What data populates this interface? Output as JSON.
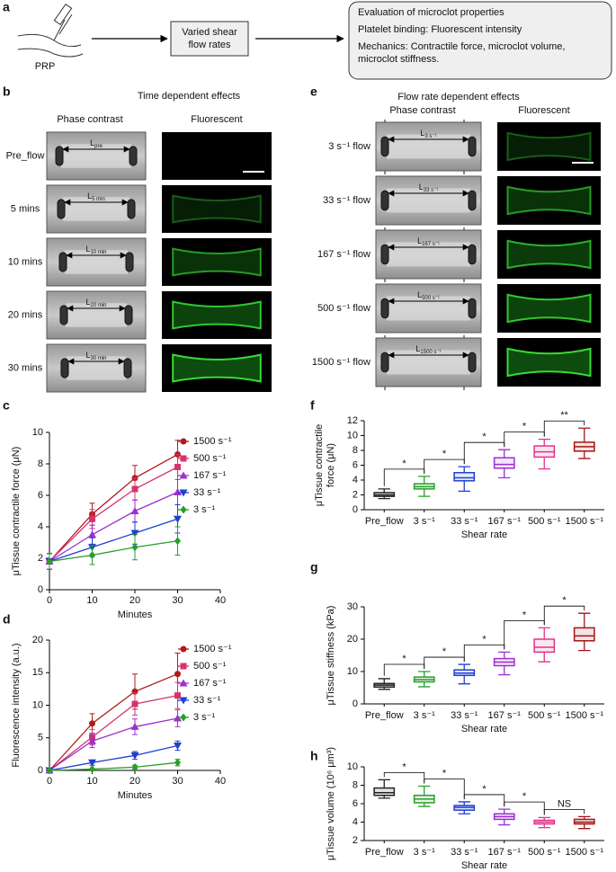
{
  "panel_labels": [
    "a",
    "b",
    "c",
    "d",
    "e",
    "f",
    "g",
    "h"
  ],
  "schematic": {
    "source": "PRP",
    "step": [
      "Varied shear",
      "flow rates"
    ],
    "evaluation": [
      "Evaluation of microclot properties",
      "Platelet binding: Fluorescent intensity",
      "Mechanics: Contractile force, microclot volume,",
      "microclot stiffness."
    ]
  },
  "time_panel": {
    "title": "Time dependent effects",
    "columns": [
      "Phase contrast",
      "Fluorescent"
    ],
    "rows": [
      {
        "label": "Pre_flow",
        "length": "L",
        "length_sub": "pre"
      },
      {
        "label": "5 mins",
        "length": "L",
        "length_sub": "5 min"
      },
      {
        "label": "10 mins",
        "length": "L",
        "length_sub": "10 min"
      },
      {
        "label": "20 mins",
        "length": "L",
        "length_sub": "20 min"
      },
      {
        "label": "30 mins",
        "length": "L",
        "length_sub": "30 min"
      }
    ]
  },
  "flow_panel": {
    "title": "Flow rate dependent effects",
    "columns": [
      "Phase contrast",
      "Fluorescent"
    ],
    "rows": [
      {
        "label": "3 s⁻¹ flow",
        "length": "L",
        "length_sub": "3 s⁻¹"
      },
      {
        "label": "33 s⁻¹ flow",
        "length": "L",
        "length_sub": "33 s⁻¹"
      },
      {
        "label": "167 s⁻¹ flow",
        "length": "L",
        "length_sub": "167 s⁻¹"
      },
      {
        "label": "500 s⁻¹ flow",
        "length": "L",
        "length_sub": "500 s⁻¹"
      },
      {
        "label": "1500 s⁻¹ flow",
        "length": "L",
        "length_sub": "1500 s⁻¹"
      }
    ]
  },
  "chart_data": [
    {
      "type": "line",
      "xlabel": "Minutes",
      "ylabel": [
        "μTissue contractile force (μN)"
      ],
      "x": [
        0,
        10,
        20,
        30
      ],
      "xlim": [
        0,
        40
      ],
      "xticks": [
        0,
        10,
        20,
        30,
        40
      ],
      "ylim": [
        0,
        10
      ],
      "yticks": [
        0,
        2,
        4,
        6,
        8,
        10
      ],
      "series": [
        {
          "name": "1500 s⁻¹",
          "color": "#b01c1c",
          "marker": "circle",
          "values": [
            1.8,
            4.8,
            7.1,
            8.6
          ],
          "errors": [
            0.5,
            0.7,
            0.8,
            0.9
          ]
        },
        {
          "name": "500 s⁻¹",
          "color": "#d6336c",
          "marker": "square",
          "values": [
            1.8,
            4.5,
            6.4,
            7.8
          ],
          "errors": [
            0.5,
            0.6,
            0.7,
            0.8
          ]
        },
        {
          "name": "167 s⁻¹",
          "color": "#9b30d0",
          "marker": "triangle-up",
          "values": [
            1.8,
            3.5,
            5.0,
            6.2
          ],
          "errors": [
            0.5,
            0.6,
            0.7,
            0.8
          ]
        },
        {
          "name": "33 s⁻¹",
          "color": "#1f3fd1",
          "marker": "triangle-down",
          "values": [
            1.8,
            2.7,
            3.6,
            4.5
          ],
          "errors": [
            0.5,
            0.6,
            0.7,
            0.9
          ]
        },
        {
          "name": "3 s⁻¹",
          "color": "#2a9d2a",
          "marker": "diamond",
          "values": [
            1.8,
            2.2,
            2.7,
            3.1
          ],
          "errors": [
            0.5,
            0.6,
            0.8,
            0.9
          ]
        }
      ]
    },
    {
      "type": "line",
      "xlabel": "Minutes",
      "ylabel": [
        "Fluorescence intensity (a.u.)"
      ],
      "x": [
        0,
        10,
        20,
        30
      ],
      "xlim": [
        0,
        40
      ],
      "xticks": [
        0,
        10,
        20,
        30,
        40
      ],
      "ylim": [
        0,
        20
      ],
      "yticks": [
        0,
        5,
        10,
        15,
        20
      ],
      "series": [
        {
          "name": "1500 s⁻¹",
          "color": "#b01c1c",
          "marker": "circle",
          "values": [
            0,
            7.2,
            12.1,
            14.8
          ],
          "errors": [
            0,
            1.5,
            2.7,
            3.2
          ]
        },
        {
          "name": "500 s⁻¹",
          "color": "#d6336c",
          "marker": "square",
          "values": [
            0,
            5.1,
            10.2,
            11.5
          ],
          "errors": [
            0,
            1.2,
            1.7,
            2.0
          ]
        },
        {
          "name": "167 s⁻¹",
          "color": "#9b30d0",
          "marker": "triangle-up",
          "values": [
            0,
            4.5,
            6.7,
            8.0
          ],
          "errors": [
            0,
            1.0,
            1.2,
            1.3
          ]
        },
        {
          "name": "33 s⁻¹",
          "color": "#1f3fd1",
          "marker": "triangle-down",
          "values": [
            0,
            1.2,
            2.3,
            3.8
          ],
          "errors": [
            0,
            0.4,
            0.6,
            0.7
          ]
        },
        {
          "name": "3 s⁻¹",
          "color": "#2a9d2a",
          "marker": "diamond",
          "values": [
            0,
            0.2,
            0.5,
            1.2
          ],
          "errors": [
            0,
            0.1,
            0.3,
            0.5
          ]
        }
      ]
    },
    {
      "type": "box",
      "xlabel": "Shear rate",
      "ylabel": [
        "μTissue contractile",
        "force (μN)"
      ],
      "categories": [
        "Pre_flow",
        "3 s⁻¹",
        "33 s⁻¹",
        "167 s⁻¹",
        "500 s⁻¹",
        "1500 s⁻¹"
      ],
      "colors": [
        "#222222",
        "#2a9d2a",
        "#1f3fd1",
        "#9b30d0",
        "#e0338a",
        "#a31515"
      ],
      "ylim": [
        0,
        12
      ],
      "yticks": [
        0,
        2,
        4,
        6,
        8,
        10,
        12
      ],
      "boxes": [
        {
          "min": 1.5,
          "q1": 1.8,
          "median": 2.0,
          "q3": 2.3,
          "max": 2.8
        },
        {
          "min": 1.8,
          "q1": 2.8,
          "median": 3.1,
          "q3": 3.5,
          "max": 4.5
        },
        {
          "min": 2.5,
          "q1": 3.9,
          "median": 4.3,
          "q3": 5.0,
          "max": 5.8
        },
        {
          "min": 4.3,
          "q1": 5.6,
          "median": 6.1,
          "q3": 7.0,
          "max": 8.1
        },
        {
          "min": 5.5,
          "q1": 7.1,
          "median": 7.8,
          "q3": 8.6,
          "max": 9.5
        },
        {
          "min": 6.9,
          "q1": 7.9,
          "median": 8.5,
          "q3": 9.1,
          "max": 11
        }
      ],
      "annotations": [
        "*",
        "*",
        "*",
        "*",
        "**"
      ]
    },
    {
      "type": "box",
      "xlabel": "Shear rate",
      "ylabel": [
        "μTissue stiffness (kPa)"
      ],
      "categories": [
        "Pre_flow",
        "3 s⁻¹",
        "33 s⁻¹",
        "167 s⁻¹",
        "500 s⁻¹",
        "1500 s⁻¹"
      ],
      "colors": [
        "#222222",
        "#2a9d2a",
        "#1f3fd1",
        "#9b30d0",
        "#e0338a",
        "#a31515"
      ],
      "ylim": [
        0,
        30
      ],
      "yticks": [
        0,
        10,
        20,
        30
      ],
      "boxes": [
        {
          "min": 4.5,
          "q1": 5.2,
          "median": 5.8,
          "q3": 6.3,
          "max": 7.8
        },
        {
          "min": 5.3,
          "q1": 6.8,
          "median": 7.5,
          "q3": 8.3,
          "max": 10
        },
        {
          "min": 6.2,
          "q1": 8.8,
          "median": 9.5,
          "q3": 10.5,
          "max": 12.2
        },
        {
          "min": 9,
          "q1": 11.8,
          "median": 12.9,
          "q3": 14,
          "max": 16
        },
        {
          "min": 13,
          "q1": 16,
          "median": 17.5,
          "q3": 20,
          "max": 23.5
        },
        {
          "min": 16.5,
          "q1": 19.5,
          "median": 21,
          "q3": 23.5,
          "max": 28
        }
      ],
      "annotations": [
        "*",
        "*",
        "*",
        "*",
        "*"
      ]
    },
    {
      "type": "box",
      "xlabel": "Shear rate",
      "ylabel": [
        "μTissue volume (10⁶ μm³)"
      ],
      "categories": [
        "Pre_flow",
        "3 s⁻¹",
        "33 s⁻¹",
        "167 s⁻¹",
        "500 s⁻¹",
        "1500 s⁻¹"
      ],
      "colors": [
        "#222222",
        "#2a9d2a",
        "#1f3fd1",
        "#9b30d0",
        "#e0338a",
        "#a31515"
      ],
      "ylim": [
        2,
        10
      ],
      "yticks": [
        2,
        4,
        6,
        8,
        10
      ],
      "boxes": [
        {
          "min": 6.6,
          "q1": 6.9,
          "median": 7.2,
          "q3": 7.7,
          "max": 8.6
        },
        {
          "min": 5.7,
          "q1": 6.1,
          "median": 6.5,
          "q3": 6.9,
          "max": 7.9
        },
        {
          "min": 4.9,
          "q1": 5.3,
          "median": 5.6,
          "q3": 5.8,
          "max": 6.2
        },
        {
          "min": 3.7,
          "q1": 4.3,
          "median": 4.6,
          "q3": 4.9,
          "max": 5.4
        },
        {
          "min": 3.4,
          "q1": 3.8,
          "median": 4.0,
          "q3": 4.2,
          "max": 4.5
        },
        {
          "min": 3.3,
          "q1": 3.8,
          "median": 4.0,
          "q3": 4.3,
          "max": 4.6
        }
      ],
      "annotations": [
        "*",
        "*",
        "*",
        "*",
        "NS"
      ]
    }
  ]
}
